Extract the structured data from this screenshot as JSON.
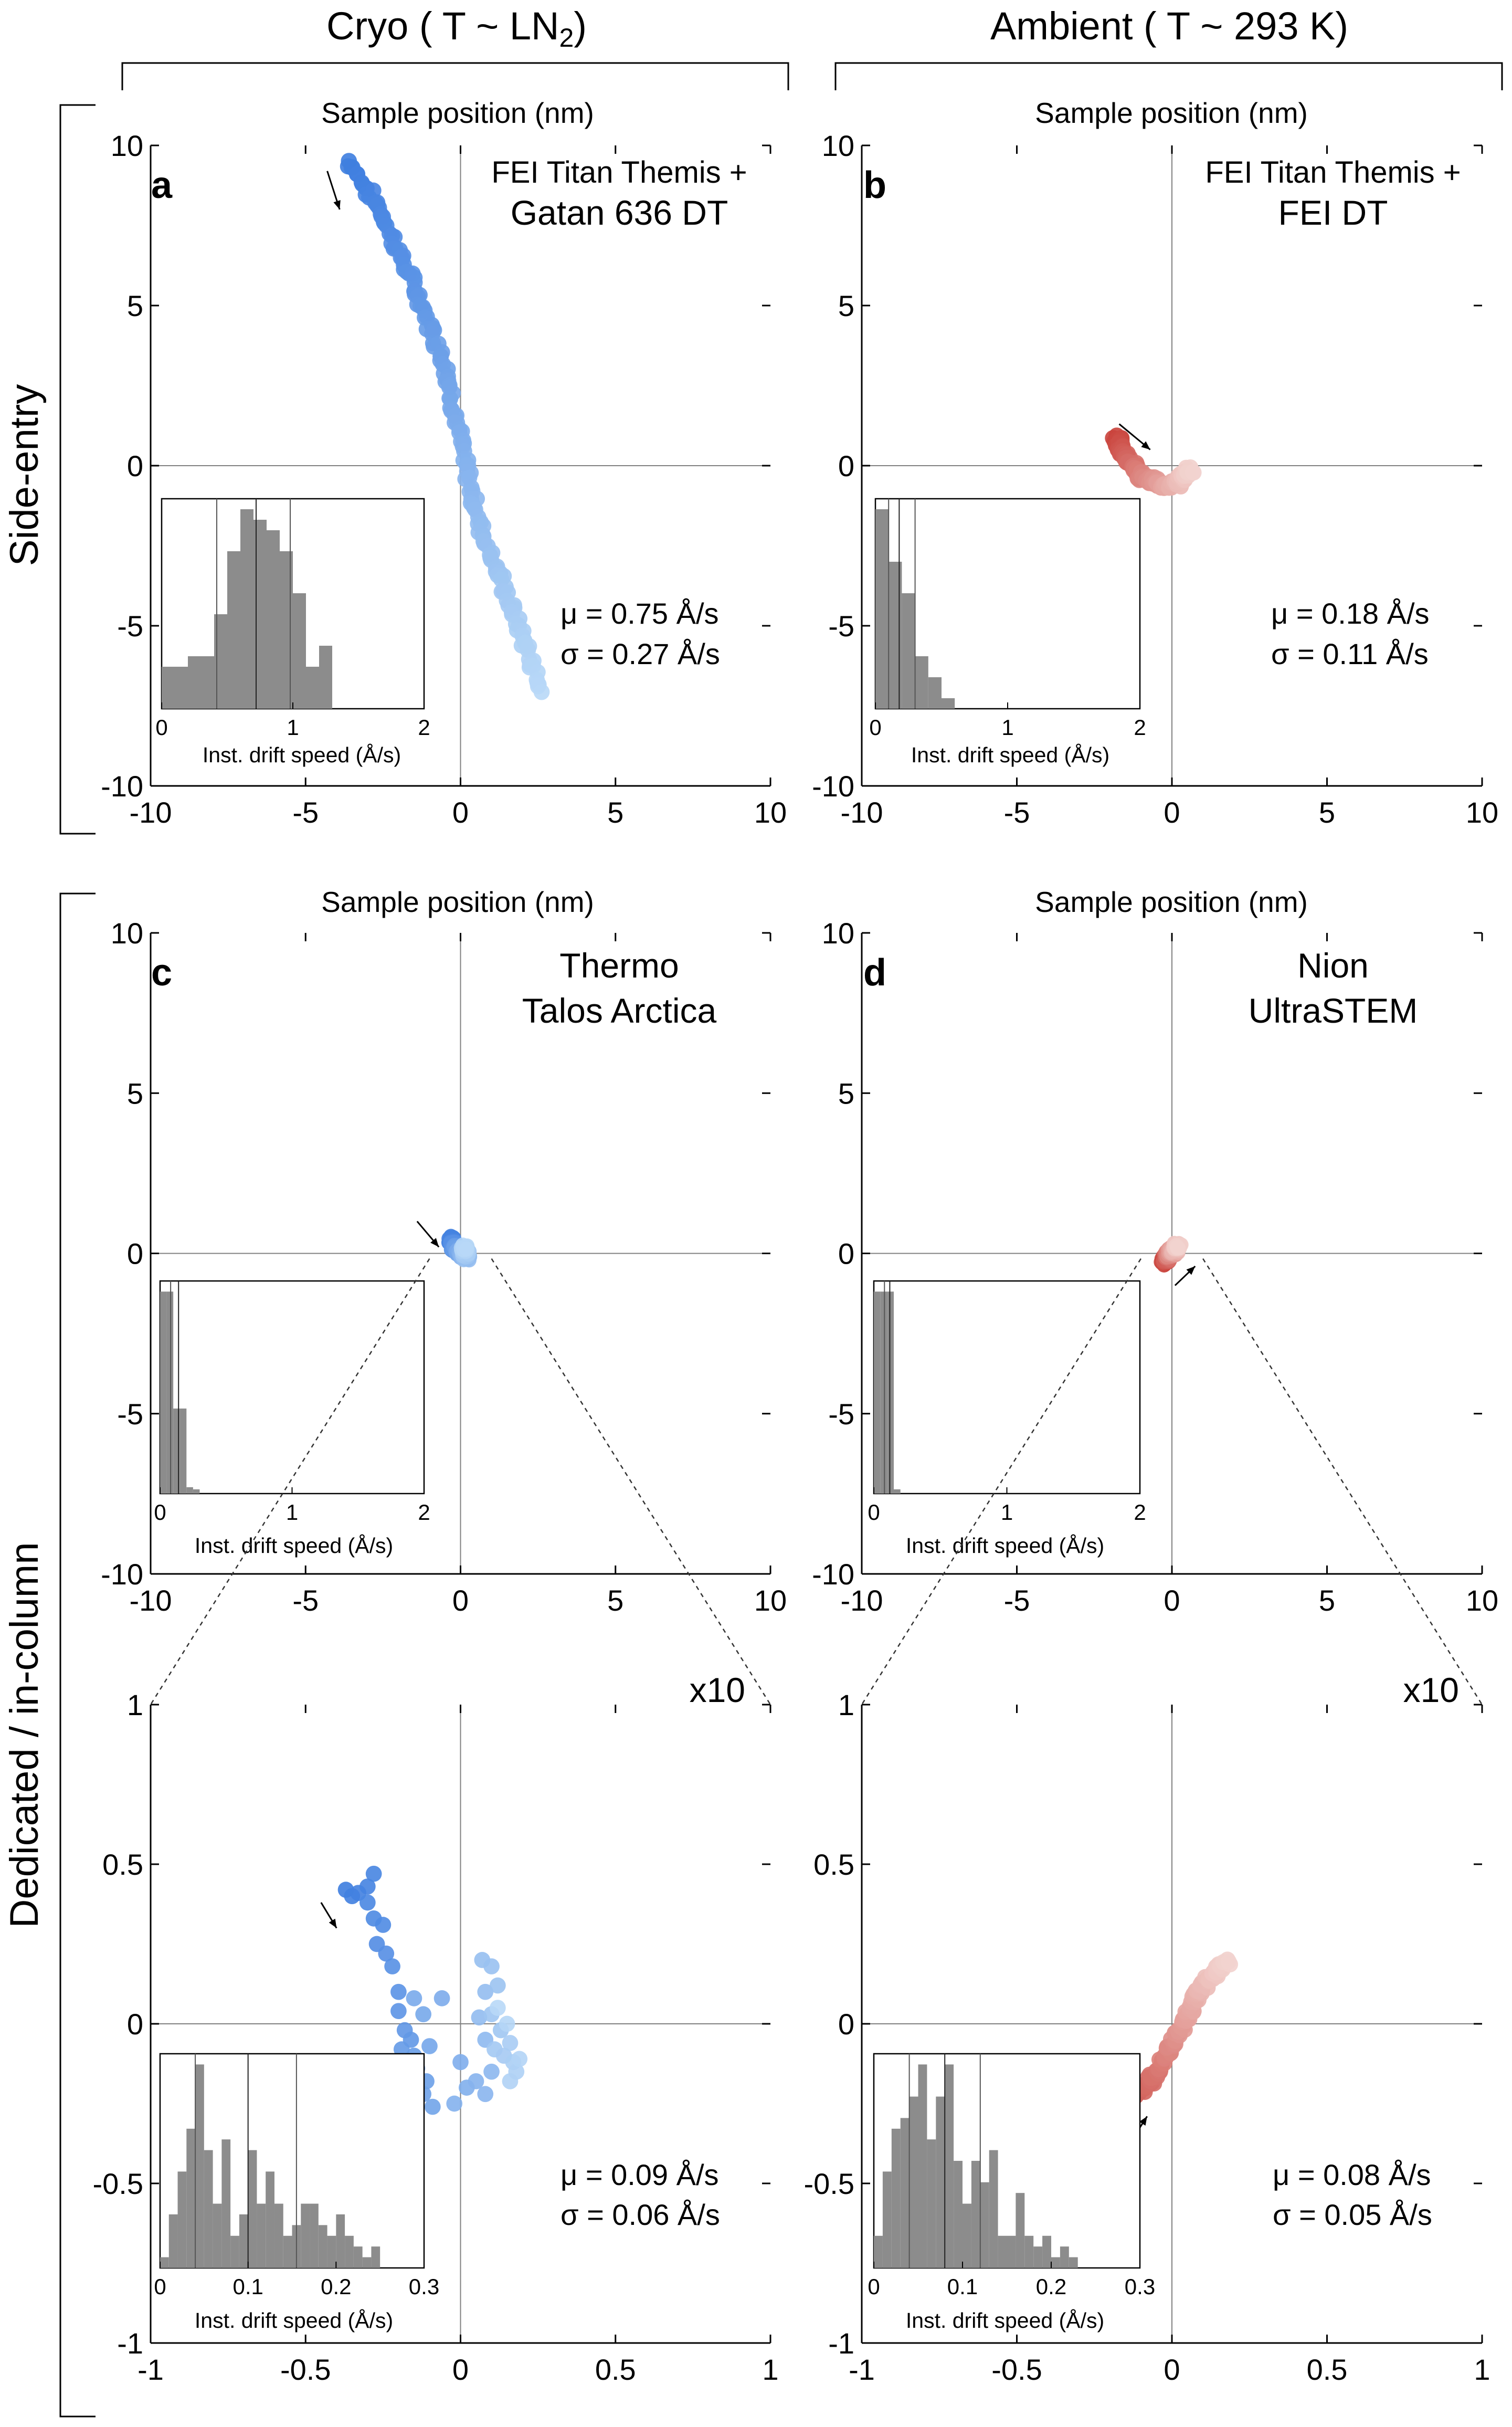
{
  "columns": [
    {
      "title_pre": "Cryo ( T ~ LN",
      "title_sub": "2",
      "title_post": ")"
    },
    {
      "title_pre": "Ambient ( T ~ 293 K)",
      "title_sub": "",
      "title_post": ""
    }
  ],
  "rows": [
    "Side-entry",
    "Dedicated / in-column"
  ],
  "axis_label": "Sample position (nm)",
  "inset_xlabel": "Inst. drift speed (Å/s)",
  "zoom_label": "x10",
  "colors": {
    "cryo_dark": "#3d7ddf",
    "cryo_light": "#b8d8f7",
    "ambient_dark": "#c9413a",
    "ambient_light": "#f2d3cf",
    "axis": "#000000",
    "crosshair": "#808080",
    "hist_bar": "#8c8c8c"
  },
  "panels": {
    "a": {
      "letter": "a",
      "instrument": [
        "FEI Titan Themis +",
        "Gatan 636 DT"
      ],
      "mu": "μ = 0.75 Å/s",
      "sigma": "σ = 0.27 Å/s"
    },
    "b": {
      "letter": "b",
      "instrument": [
        "FEI Titan Themis +",
        "FEI DT"
      ],
      "mu": "μ = 0.18 Å/s",
      "sigma": "σ = 0.11 Å/s"
    },
    "c": {
      "letter": "c",
      "instrument": [
        "Thermo",
        "Talos Arctica"
      ]
    },
    "d": {
      "letter": "d",
      "instrument": [
        "Nion",
        "UltraSTEM"
      ]
    },
    "c_zoom": {
      "mu": "μ = 0.09 Å/s",
      "sigma": "σ = 0.06 Å/s"
    },
    "d_zoom": {
      "mu": "μ = 0.08 Å/s",
      "sigma": "σ = 0.05 Å/s"
    }
  },
  "chart_data": [
    {
      "id": "a",
      "type": "scatter",
      "color": "cryo",
      "xlabel": "Sample position (nm)",
      "xlim": [
        -10,
        10
      ],
      "ylim": [
        -10,
        10
      ],
      "xticks": [
        -10,
        -5,
        0,
        5,
        10
      ],
      "yticks": [
        -10,
        -5,
        0,
        5,
        10
      ],
      "tick_labels_x": [
        "-10",
        "-5",
        "0",
        "5",
        "10"
      ],
      "tick_labels_y": [
        "-10",
        "-5",
        "0",
        "5",
        "10"
      ],
      "path": [
        [
          -3.6,
          9.5
        ],
        [
          -2.6,
          8.0
        ],
        [
          -1.5,
          5.6
        ],
        [
          -0.5,
          3.2
        ],
        [
          0.1,
          0.3
        ],
        [
          0.6,
          -1.8
        ],
        [
          1.4,
          -3.8
        ],
        [
          2.1,
          -5.6
        ],
        [
          2.6,
          -7.0
        ]
      ],
      "start_arrow": {
        "from": [
          -4.3,
          9.2
        ],
        "to": [
          -3.9,
          8.0
        ]
      },
      "inset": {
        "xlim": [
          0,
          2
        ],
        "xticks": [
          0,
          1,
          2
        ],
        "tick_labels": [
          "0",
          "1",
          "2"
        ],
        "edges": [
          0,
          0.2,
          0.4,
          0.5,
          0.6,
          0.7,
          0.8,
          0.9,
          1.0,
          1.1,
          1.2,
          1.3
        ],
        "heights": [
          0.2,
          0.25,
          0.45,
          0.75,
          0.95,
          0.9,
          0.85,
          0.75,
          0.55,
          0.2,
          0.3
        ],
        "vlines": [
          0.42,
          0.72,
          0.98
        ]
      }
    },
    {
      "id": "b",
      "type": "scatter",
      "color": "ambient",
      "xlabel": "Sample position (nm)",
      "xlim": [
        -10,
        10
      ],
      "ylim": [
        -10,
        10
      ],
      "xticks": [
        -10,
        -5,
        0,
        5,
        10
      ],
      "yticks": [
        -10,
        -5,
        0,
        5,
        10
      ],
      "tick_labels_x": [
        "-10",
        "-5",
        "0",
        "5",
        "10"
      ],
      "tick_labels_y": [
        "-10",
        "-5",
        "0",
        "5",
        "10"
      ],
      "path": [
        [
          -1.8,
          0.9
        ],
        [
          -1.5,
          0.3
        ],
        [
          -1.0,
          -0.3
        ],
        [
          -0.4,
          -0.6
        ],
        [
          0.1,
          -0.6
        ],
        [
          0.4,
          -0.3
        ],
        [
          0.6,
          -0.1
        ]
      ],
      "start_arrow": {
        "from": [
          -1.7,
          1.3
        ],
        "to": [
          -0.7,
          0.5
        ]
      },
      "inset": {
        "xlim": [
          0,
          2
        ],
        "xticks": [
          0,
          1,
          2
        ],
        "tick_labels": [
          "0",
          "1",
          "2"
        ],
        "edges": [
          0,
          0.1,
          0.2,
          0.3,
          0.4,
          0.5,
          0.6
        ],
        "heights": [
          0.95,
          0.7,
          0.55,
          0.25,
          0.15,
          0.05
        ],
        "vlines": [
          0.1,
          0.18,
          0.3
        ]
      }
    },
    {
      "id": "c",
      "type": "scatter",
      "color": "cryo",
      "xlabel": "Sample position (nm)",
      "xlim": [
        -10,
        10
      ],
      "ylim": [
        -10,
        10
      ],
      "xticks": [
        -10,
        -5,
        0,
        5,
        10
      ],
      "yticks": [
        -10,
        -5,
        0,
        5,
        10
      ],
      "tick_labels_x": [
        "-10",
        "-5",
        "0",
        "5",
        "10"
      ],
      "tick_labels_y": [
        "-10",
        "-5",
        "0",
        "5",
        "10"
      ],
      "path": [
        [
          -0.3,
          0.45
        ],
        [
          -0.2,
          0.2
        ],
        [
          0.0,
          0.0
        ],
        [
          0.2,
          -0.1
        ],
        [
          0.1,
          0.2
        ]
      ],
      "start_arrow": {
        "from": [
          -1.4,
          1.0
        ],
        "to": [
          -0.7,
          0.2
        ]
      },
      "zoom_lines": true,
      "inset": {
        "xlim": [
          0,
          2
        ],
        "xticks": [
          0,
          1,
          2
        ],
        "tick_labels": [
          "0",
          "1",
          "2"
        ],
        "edges": [
          0,
          0.05,
          0.1,
          0.15,
          0.2,
          0.25,
          0.3
        ],
        "heights": [
          0.95,
          0.95,
          0.4,
          0.4,
          0.03,
          0.02
        ],
        "vlines": [
          0.08,
          0.14
        ]
      }
    },
    {
      "id": "d",
      "type": "scatter",
      "color": "ambient",
      "xlabel": "Sample position (nm)",
      "xlim": [
        -10,
        10
      ],
      "ylim": [
        -10,
        10
      ],
      "xticks": [
        -10,
        -5,
        0,
        5,
        10
      ],
      "yticks": [
        -10,
        -5,
        0,
        5,
        10
      ],
      "tick_labels_x": [
        "-10",
        "-5",
        "0",
        "5",
        "10"
      ],
      "tick_labels_y": [
        "-10",
        "-5",
        "0",
        "5",
        "10"
      ],
      "path": [
        [
          -0.25,
          -0.25
        ],
        [
          -0.1,
          -0.05
        ],
        [
          0.1,
          0.15
        ],
        [
          0.2,
          0.25
        ]
      ],
      "start_arrow": {
        "from": [
          0.1,
          -1.0
        ],
        "to": [
          0.75,
          -0.4
        ]
      },
      "zoom_lines": true,
      "inset": {
        "xlim": [
          0,
          2
        ],
        "xticks": [
          0,
          1,
          2
        ],
        "tick_labels": [
          "0",
          "1",
          "2"
        ],
        "edges": [
          0,
          0.05,
          0.1,
          0.15,
          0.2
        ],
        "heights": [
          0.95,
          0.95,
          0.95,
          0.02
        ],
        "vlines": [
          0.08,
          0.12
        ]
      }
    },
    {
      "id": "c_zoom",
      "type": "scatter",
      "color": "cryo",
      "xlim": [
        -1,
        1
      ],
      "ylim": [
        -1,
        1
      ],
      "xticks": [
        -1,
        -0.5,
        0,
        0.5,
        1
      ],
      "yticks": [
        -1,
        -0.5,
        0,
        0.5,
        1
      ],
      "tick_labels_x": [
        "-1",
        "-0.5",
        "0",
        "0.5",
        "1"
      ],
      "tick_labels_y": [
        "-1",
        "-0.5",
        "0",
        "0.5",
        "1"
      ],
      "points": [
        [
          -0.37,
          0.42
        ],
        [
          -0.35,
          0.4
        ],
        [
          -0.33,
          0.41
        ],
        [
          -0.3,
          0.43
        ],
        [
          -0.28,
          0.47
        ],
        [
          -0.3,
          0.38
        ],
        [
          -0.28,
          0.33
        ],
        [
          -0.25,
          0.31
        ],
        [
          -0.27,
          0.25
        ],
        [
          -0.24,
          0.22
        ],
        [
          -0.22,
          0.18
        ],
        [
          -0.2,
          0.1
        ],
        [
          -0.2,
          0.04
        ],
        [
          -0.18,
          -0.02
        ],
        [
          -0.16,
          -0.05
        ],
        [
          -0.19,
          -0.08
        ],
        [
          -0.15,
          -0.1
        ],
        [
          -0.14,
          -0.14
        ],
        [
          -0.11,
          -0.18
        ],
        [
          -0.12,
          -0.22
        ],
        [
          -0.09,
          -0.26
        ],
        [
          -0.1,
          -0.07
        ],
        [
          -0.12,
          0.03
        ],
        [
          -0.15,
          0.08
        ],
        [
          -0.06,
          0.08
        ],
        [
          0.0,
          -0.12
        ],
        [
          0.02,
          -0.2
        ],
        [
          -0.02,
          -0.25
        ],
        [
          0.05,
          -0.18
        ],
        [
          0.08,
          -0.22
        ],
        [
          0.1,
          -0.15
        ],
        [
          0.08,
          -0.05
        ],
        [
          0.06,
          0.02
        ],
        [
          0.08,
          0.1
        ],
        [
          0.07,
          0.2
        ],
        [
          0.1,
          0.18
        ],
        [
          0.12,
          0.12
        ],
        [
          0.1,
          0.03
        ],
        [
          0.13,
          -0.02
        ],
        [
          0.11,
          -0.08
        ],
        [
          0.14,
          -0.1
        ],
        [
          0.16,
          -0.06
        ],
        [
          0.17,
          -0.12
        ],
        [
          0.18,
          -0.15
        ],
        [
          0.16,
          -0.18
        ],
        [
          0.19,
          -0.11
        ],
        [
          0.15,
          0.0
        ],
        [
          0.12,
          0.05
        ]
      ],
      "start_arrow": {
        "from": [
          -0.45,
          0.38
        ],
        "to": [
          -0.4,
          0.3
        ]
      },
      "inset": {
        "xlim": [
          0,
          0.3
        ],
        "xticks": [
          0,
          0.1,
          0.2,
          0.3
        ],
        "tick_labels": [
          "0",
          "0.1",
          "0.2",
          "0.3"
        ],
        "edges": [
          0,
          0.01,
          0.02,
          0.03,
          0.04,
          0.05,
          0.06,
          0.07,
          0.08,
          0.09,
          0.1,
          0.11,
          0.12,
          0.13,
          0.14,
          0.15,
          0.16,
          0.17,
          0.18,
          0.19,
          0.2,
          0.21,
          0.22,
          0.23,
          0.24,
          0.25
        ],
        "heights": [
          0.05,
          0.25,
          0.45,
          0.65,
          0.95,
          0.55,
          0.3,
          0.6,
          0.15,
          0.25,
          0.55,
          0.3,
          0.45,
          0.3,
          0.15,
          0.2,
          0.3,
          0.3,
          0.2,
          0.15,
          0.25,
          0.15,
          0.1,
          0.05,
          0.1
        ],
        "vlines": [
          0.04,
          0.1,
          0.155
        ]
      }
    },
    {
      "id": "d_zoom",
      "type": "scatter",
      "color": "ambient",
      "xlim": [
        -1,
        1
      ],
      "ylim": [
        -1,
        1
      ],
      "xticks": [
        -1,
        -0.5,
        0,
        0.5,
        1
      ],
      "yticks": [
        -1,
        -0.5,
        0,
        0.5,
        1
      ],
      "tick_labels_x": [
        "-1",
        "-0.5",
        "0",
        "0.5",
        "1"
      ],
      "tick_labels_y": [
        "-1",
        "-0.5",
        "0",
        "0.5",
        "1"
      ],
      "path": [
        [
          -0.24,
          -0.26
        ],
        [
          -0.15,
          -0.24
        ],
        [
          -0.07,
          -0.18
        ],
        [
          -0.02,
          -0.1
        ],
        [
          0.02,
          -0.03
        ],
        [
          0.06,
          0.05
        ],
        [
          0.1,
          0.12
        ],
        [
          0.15,
          0.17
        ],
        [
          0.18,
          0.2
        ]
      ],
      "start_arrow": {
        "from": [
          -0.14,
          -0.38
        ],
        "to": [
          -0.08,
          -0.29
        ]
      },
      "inset": {
        "xlim": [
          0,
          0.3
        ],
        "xticks": [
          0,
          0.1,
          0.2,
          0.3
        ],
        "tick_labels": [
          "0",
          "0.1",
          "0.2",
          "0.3"
        ],
        "edges": [
          0,
          0.01,
          0.02,
          0.03,
          0.04,
          0.05,
          0.06,
          0.07,
          0.08,
          0.09,
          0.1,
          0.11,
          0.12,
          0.13,
          0.14,
          0.15,
          0.16,
          0.17,
          0.18,
          0.19,
          0.2,
          0.21,
          0.22,
          0.23
        ],
        "heights": [
          0.15,
          0.45,
          0.65,
          0.7,
          0.8,
          0.95,
          0.6,
          0.8,
          0.95,
          0.5,
          0.3,
          0.5,
          0.4,
          0.55,
          0.15,
          0.15,
          0.35,
          0.15,
          0.1,
          0.15,
          0.05,
          0.1,
          0.05
        ],
        "vlines": [
          0.04,
          0.08,
          0.12
        ]
      }
    }
  ]
}
